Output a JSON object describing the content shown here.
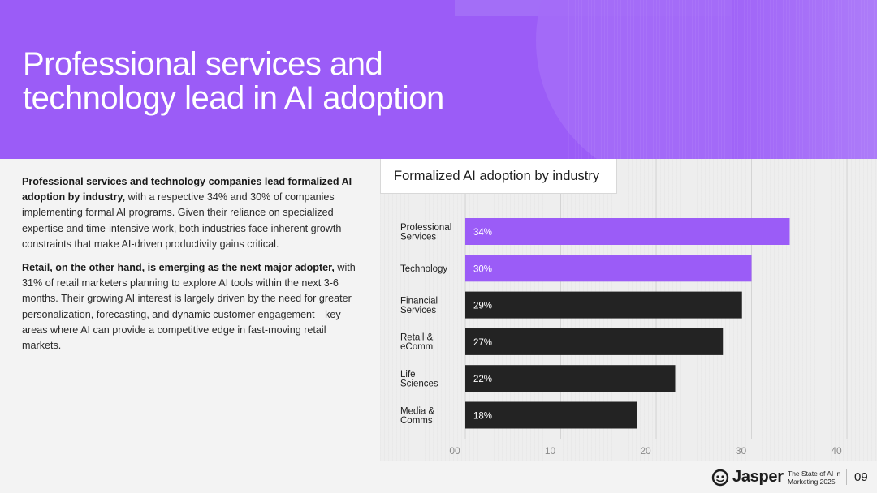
{
  "header": {
    "title_line1": "Professional services and",
    "title_line2": "technology lead in AI adoption"
  },
  "body": {
    "p1_bold": "Professional services and technology companies lead formalized AI adoption by industry,",
    "p1_rest": " with a respective 34% and 30% of companies implementing formal AI programs. Given their reliance on specialized expertise and time-intensive work, both industries face inherent growth constraints that make AI-driven productivity gains critical.",
    "p2_bold": "Retail, on the other hand, is emerging as the next major adopter,",
    "p2_rest": " with 31% of retail marketers planning to explore AI tools within the next 3-6 months. Their growing AI interest is largely driven by the need for greater personalization, forecasting, and dynamic customer engagement—key areas where AI can provide a competitive edge in fast-moving retail markets."
  },
  "chart_data": {
    "type": "bar",
    "orientation": "horizontal",
    "title": "Formalized AI adoption by industry",
    "categories": [
      [
        "Professional",
        "Services"
      ],
      [
        "Technology"
      ],
      [
        "Financial",
        "Services"
      ],
      [
        "Retail &",
        "eComm"
      ],
      [
        "Life",
        "Sciences"
      ],
      [
        "Media &",
        "Comms"
      ]
    ],
    "values": [
      34,
      30,
      29,
      27,
      22,
      18
    ],
    "value_labels": [
      "34%",
      "30%",
      "29%",
      "27%",
      "22%",
      "18%"
    ],
    "highlight_color": "#9b5cf7",
    "default_color": "#232323",
    "highlighted": [
      true,
      true,
      false,
      false,
      false,
      false
    ],
    "xlim": [
      0,
      40
    ],
    "xticks": [
      "00",
      "10",
      "20",
      "30",
      "40"
    ],
    "xtick_values": [
      0,
      10,
      20,
      30,
      40
    ],
    "grid": true
  },
  "footer": {
    "logo_text": "Jasper",
    "sub_line1": "The State of AI in",
    "sub_line2": "Marketing 2025",
    "page_number": "09"
  }
}
